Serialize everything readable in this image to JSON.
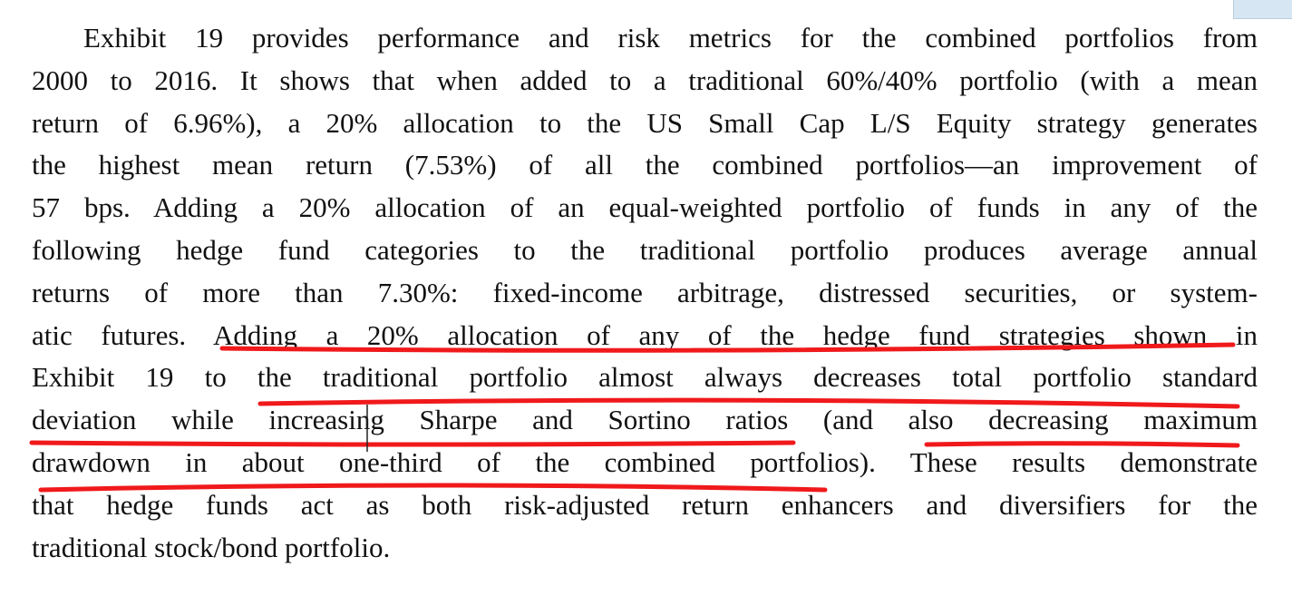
{
  "paragraph": {
    "lines": [
      "Exhibit 19 provides performance and risk metrics for the combined portfolios from",
      "2000 to 2016. It shows that when added to a traditional 60%/40% portfolio (with a mean",
      "return of 6.96%), a 20% allocation to the US Small Cap L/S Equity strategy generates",
      "the highest mean return (7.53%) of all the combined portfolios—an improvement of",
      "57 bps. Adding a 20% allocation of an equal-weighted portfolio of funds in any of the",
      "following hedge fund categories to the traditional portfolio produces average annual",
      "returns of more than 7.30%: fixed-income arbitrage, distressed securities, or system-",
      "atic futures. Adding a 20% allocation of any of the hedge fund strategies shown in",
      "Exhibit 19 to the traditional portfolio almost always decreases total portfolio standard",
      "deviation while increasing Sharpe and Sortino ratios (and also decreasing maximum",
      "drawdown in about one-third of the combined portfolios). These results demonstrate",
      "that hedge funds act as both risk-adjusted return enhancers and diversifiers for the",
      "traditional stock/bond portfolio."
    ]
  }
}
